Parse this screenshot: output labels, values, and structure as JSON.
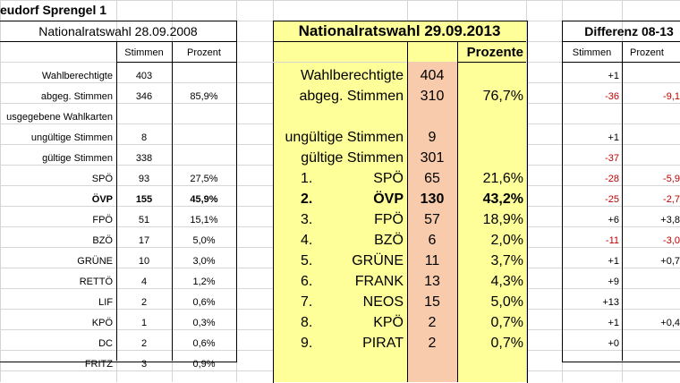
{
  "title": "eudorf Sprengel 1",
  "left": {
    "header": "Nationalratswahl 28.09.2008",
    "col_stimmen": "Stimmen",
    "col_prozent": "Prozent",
    "rows": [
      {
        "label": "Wahlberechtigte",
        "stimmen": "403",
        "prozent": ""
      },
      {
        "label": "abgeg. Stimmen",
        "stimmen": "346",
        "prozent": "85,9%"
      },
      {
        "label": "usgegebene Wahlkarten",
        "stimmen": "",
        "prozent": ""
      },
      {
        "label": "ungültige Stimmen",
        "stimmen": "8",
        "prozent": ""
      },
      {
        "label": "gültige Stimmen",
        "stimmen": "338",
        "prozent": ""
      },
      {
        "label": "SPÖ",
        "stimmen": "93",
        "prozent": "27,5%"
      },
      {
        "label": "ÖVP",
        "stimmen": "155",
        "prozent": "45,9%"
      },
      {
        "label": "FPÖ",
        "stimmen": "51",
        "prozent": "15,1%"
      },
      {
        "label": "BZÖ",
        "stimmen": "17",
        "prozent": "5,0%"
      },
      {
        "label": "GRÜNE",
        "stimmen": "10",
        "prozent": "3,0%"
      },
      {
        "label": "RETTÖ",
        "stimmen": "4",
        "prozent": "1,2%"
      },
      {
        "label": "LIF",
        "stimmen": "2",
        "prozent": "0,6%"
      },
      {
        "label": "KPÖ",
        "stimmen": "1",
        "prozent": "0,3%"
      },
      {
        "label": "DC",
        "stimmen": "2",
        "prozent": "0,6%"
      },
      {
        "label": "FRITZ",
        "stimmen": "3",
        "prozent": "0,9%"
      }
    ]
  },
  "middle": {
    "header": "Nationalratswahl 29.09.2013",
    "col_prozente": "Prozente",
    "rows": [
      {
        "rank": "",
        "label": "Wahlberechtigte",
        "stimmen": "404",
        "prozent": ""
      },
      {
        "rank": "",
        "label": "abgeg. Stimmen",
        "stimmen": "310",
        "prozent": "76,7%"
      },
      {
        "rank": "",
        "label": "",
        "stimmen": "",
        "prozent": ""
      },
      {
        "rank": "",
        "label": "ungültige Stimmen",
        "stimmen": "9",
        "prozent": ""
      },
      {
        "rank": "",
        "label": "gültige Stimmen",
        "stimmen": "301",
        "prozent": ""
      },
      {
        "rank": "1.",
        "label": "SPÖ",
        "stimmen": "65",
        "prozent": "21,6%"
      },
      {
        "rank": "2.",
        "label": "ÖVP",
        "stimmen": "130",
        "prozent": "43,2%"
      },
      {
        "rank": "3.",
        "label": "FPÖ",
        "stimmen": "57",
        "prozent": "18,9%"
      },
      {
        "rank": "4.",
        "label": "BZÖ",
        "stimmen": "6",
        "prozent": "2,0%"
      },
      {
        "rank": "5.",
        "label": "GRÜNE",
        "stimmen": "11",
        "prozent": "3,7%"
      },
      {
        "rank": "6.",
        "label": "FRANK",
        "stimmen": "13",
        "prozent": "4,3%"
      },
      {
        "rank": "7.",
        "label": "NEOS",
        "stimmen": "15",
        "prozent": "5,0%"
      },
      {
        "rank": "8.",
        "label": "KPÖ",
        "stimmen": "2",
        "prozent": "0,7%"
      },
      {
        "rank": "9.",
        "label": "PIRAT",
        "stimmen": "2",
        "prozent": "0,7%"
      }
    ]
  },
  "right": {
    "header": "Differenz 08-13",
    "col_stimmen": "Stimmen",
    "col_prozent": "Prozent",
    "rows": [
      {
        "stimmen": "+1",
        "prozent": ""
      },
      {
        "stimmen": "-36",
        "prozent": "-9,1"
      },
      {
        "stimmen": "",
        "prozent": ""
      },
      {
        "stimmen": "+1",
        "prozent": ""
      },
      {
        "stimmen": "-37",
        "prozent": ""
      },
      {
        "stimmen": "-28",
        "prozent": "-5,9"
      },
      {
        "stimmen": "-25",
        "prozent": "-2,7"
      },
      {
        "stimmen": "+6",
        "prozent": "+3,8"
      },
      {
        "stimmen": "-11",
        "prozent": "-3,0"
      },
      {
        "stimmen": "+1",
        "prozent": "+0,7"
      },
      {
        "stimmen": "+9",
        "prozent": ""
      },
      {
        "stimmen": "+13",
        "prozent": ""
      },
      {
        "stimmen": "+1",
        "prozent": "+0,4"
      },
      {
        "stimmen": "+0",
        "prozent": ""
      }
    ]
  },
  "colors": {
    "yellow_fill": "#ffff99",
    "orange_fill": "#f8cbad",
    "negative_text": "#c00000",
    "gridline": "#d6d6d6"
  }
}
